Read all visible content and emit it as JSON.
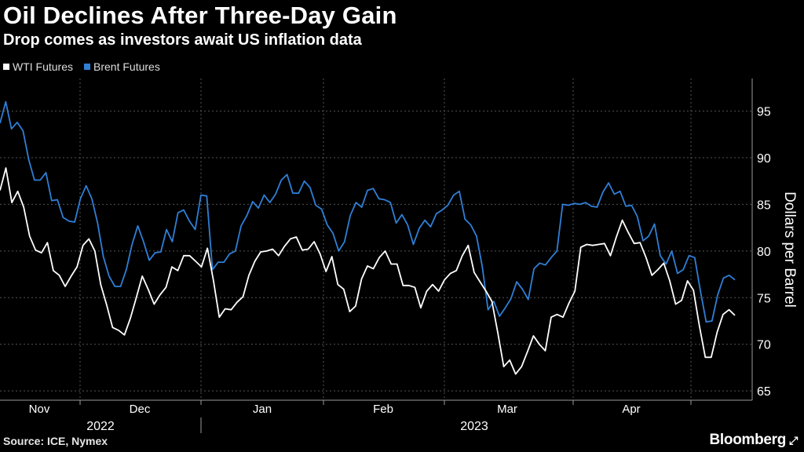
{
  "header": {
    "title": "Oil Declines After Three-Day Gain",
    "subtitle": "Drop comes as investors await US inflation data"
  },
  "footer": {
    "source": "Source: ICE, Nymex",
    "brand": "Bloomberg",
    "brand_icon": "expand-arrow-icon"
  },
  "colors": {
    "wti": "#ffffff",
    "brent": "#2f7fd6",
    "grid": "#555555",
    "text": "#ffffff"
  },
  "chart_data": {
    "type": "line",
    "ylabel": "Dollars per Barrel",
    "ylim": [
      64,
      98.5
    ],
    "yticks": [
      65,
      70,
      75,
      80,
      85,
      90,
      95
    ],
    "grid": "horizontal dashed",
    "legend_position": "top-left",
    "x_axis": {
      "months": [
        "Nov",
        "Dec",
        "Jan",
        "Feb",
        "Mar",
        "Apr"
      ],
      "years": [
        "2022",
        "2023"
      ]
    },
    "series": [
      {
        "name": "WTI Futures",
        "values": [
          86.5,
          88.9,
          85.2,
          86.4,
          84.7,
          81.6,
          80.1,
          79.8,
          80.9,
          77.9,
          77.4,
          76.2,
          77.3,
          78.3,
          80.6,
          81.3,
          80.0,
          76.4,
          74.2,
          71.8,
          71.5,
          71.0,
          72.8,
          75.0,
          77.3,
          75.9,
          74.3,
          75.3,
          76.1,
          78.3,
          77.9,
          79.5,
          79.5,
          78.9,
          78.3,
          80.3,
          76.9,
          72.9,
          73.8,
          73.7,
          74.5,
          75.1,
          77.4,
          78.9,
          79.9,
          80.0,
          80.2,
          79.5,
          80.5,
          81.3,
          81.5,
          80.1,
          80.2,
          81.0,
          79.7,
          77.8,
          79.4,
          76.4,
          75.9,
          73.5,
          74.1,
          77.0,
          78.4,
          78.1,
          79.3,
          80.0,
          78.6,
          78.6,
          76.3,
          76.3,
          76.1,
          73.9,
          75.7,
          76.4,
          75.7,
          76.9,
          77.6,
          77.9,
          79.5,
          80.6,
          77.7,
          76.7,
          75.7,
          74.6,
          71.2,
          67.6,
          68.3,
          66.8,
          67.6,
          69.2,
          70.9,
          70.0,
          69.3,
          72.9,
          73.2,
          72.9,
          74.4,
          75.7,
          80.4,
          80.7,
          80.6,
          80.7,
          80.8,
          79.5,
          81.5,
          83.3,
          82.0,
          80.8,
          80.9,
          79.3,
          77.4,
          78.0,
          78.7,
          76.8,
          74.3,
          74.7,
          76.8,
          75.8,
          72.0,
          68.6,
          68.6,
          71.3,
          73.2,
          73.7,
          73.1
        ]
      },
      {
        "name": "Brent Futures",
        "values": [
          93.7,
          96.0,
          93.1,
          93.8,
          92.9,
          89.8,
          87.6,
          87.6,
          88.4,
          85.4,
          85.5,
          83.6,
          83.2,
          83.1,
          85.6,
          87.0,
          85.6,
          83.0,
          79.4,
          77.3,
          76.2,
          76.2,
          78.0,
          80.7,
          82.7,
          81.0,
          79.0,
          79.8,
          79.9,
          82.3,
          81.0,
          84.1,
          84.4,
          83.2,
          82.3,
          86.0,
          85.9,
          78.0,
          78.8,
          78.8,
          79.7,
          80.0,
          82.7,
          83.8,
          85.3,
          84.6,
          86.0,
          85.2,
          86.1,
          87.6,
          88.2,
          86.2,
          86.2,
          87.5,
          86.8,
          84.9,
          84.5,
          82.8,
          81.9,
          80.0,
          81.0,
          83.8,
          85.2,
          84.7,
          86.5,
          86.7,
          85.6,
          85.5,
          85.2,
          83.0,
          83.9,
          82.8,
          80.7,
          82.4,
          83.3,
          82.6,
          84.0,
          84.4,
          84.9,
          86.0,
          86.4,
          83.4,
          82.8,
          81.6,
          78.3,
          73.7,
          74.6,
          73.0,
          73.9,
          74.9,
          76.7,
          75.9,
          74.8,
          78.1,
          78.7,
          78.5,
          79.3,
          80.0,
          85.0,
          84.9,
          85.1,
          85.0,
          85.2,
          84.8,
          84.7,
          86.3,
          87.3,
          86.1,
          86.4,
          84.8,
          84.9,
          83.7,
          81.1,
          81.6,
          82.9,
          79.5,
          78.6,
          80.0,
          77.6,
          78.0,
          79.5,
          79.3,
          75.7,
          72.4,
          72.5,
          75.3,
          77.1,
          77.4,
          76.9
        ]
      }
    ]
  }
}
